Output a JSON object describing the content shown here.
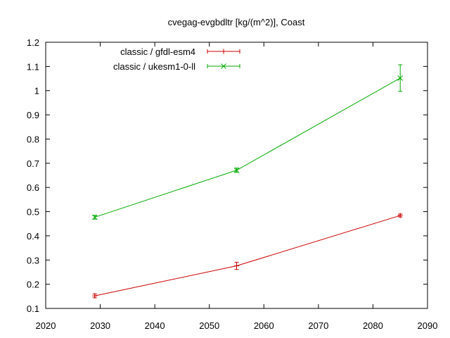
{
  "chart_data": {
    "type": "line",
    "title": "cvegag-evgbdltr [kg/(m^2)], Coast",
    "xlabel": "",
    "ylabel": "",
    "xlim": [
      2020,
      2090
    ],
    "ylim": [
      0.1,
      1.2
    ],
    "xticks": [
      2020,
      2030,
      2040,
      2050,
      2060,
      2070,
      2080,
      2090
    ],
    "yticks": [
      0.1,
      0.2,
      0.3,
      0.4,
      0.5,
      0.6,
      0.7,
      0.8,
      0.9,
      1,
      1.1,
      1.2
    ],
    "grid": false,
    "legend_position": "top-left",
    "series": [
      {
        "name": "classic / gfdl-esm4",
        "color": "#cc0000",
        "marker": "plus",
        "points": [
          {
            "x": 2029,
            "y": 0.152,
            "err": 0.008
          },
          {
            "x": 2055,
            "y": 0.276,
            "err": 0.015
          },
          {
            "x": 2085,
            "y": 0.484,
            "err": 0.006
          }
        ]
      },
      {
        "name": "classic / ukesm1-0-ll",
        "color": "#00aa00",
        "marker": "cross",
        "points": [
          {
            "x": 2029,
            "y": 0.477,
            "err": 0.008
          },
          {
            "x": 2055,
            "y": 0.671,
            "err": 0.009
          },
          {
            "x": 2085,
            "y": 1.052,
            "err": 0.055
          }
        ]
      }
    ]
  }
}
